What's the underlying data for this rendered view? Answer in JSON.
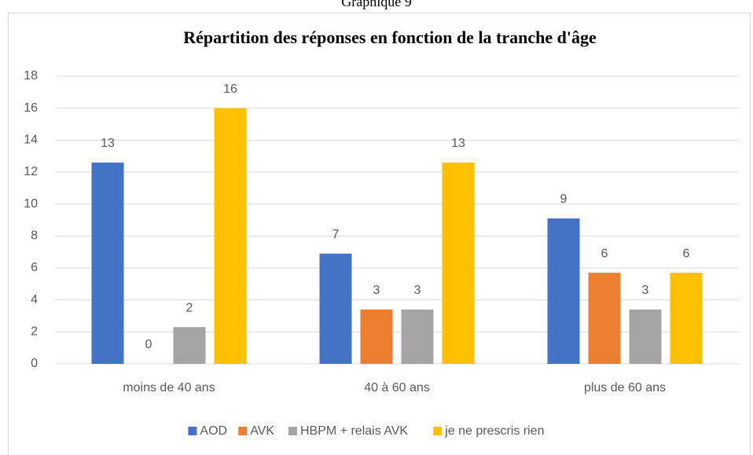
{
  "page_title": "Graphique 9",
  "chart_data": {
    "type": "bar",
    "title": "Répartition des réponses en fonction de la tranche d'âge",
    "categories": [
      "moins de 40 ans",
      "40 à 60 ans",
      "plus de 60 ans"
    ],
    "series": [
      {
        "name": "AOD",
        "color": "#4472c4",
        "values": [
          12.6,
          6.9,
          9.1
        ],
        "value_labels": [
          "13",
          "7",
          "9"
        ]
      },
      {
        "name": "AVK",
        "color": "#ed7d31",
        "values": [
          0,
          3.4,
          5.7
        ],
        "value_labels": [
          "0",
          "3",
          "6"
        ]
      },
      {
        "name": "HBPM + relais AVK",
        "color": "#a5a5a5",
        "values": [
          2.3,
          3.4,
          3.4
        ],
        "value_labels": [
          "2",
          "3",
          "3"
        ]
      },
      {
        "name": "je ne prescris rien",
        "color": "#ffc000",
        "values": [
          16,
          12.6,
          5.7
        ],
        "value_labels": [
          "16",
          "13",
          "6"
        ]
      }
    ],
    "ylim": [
      0,
      18
    ],
    "yticks": [
      0,
      2,
      4,
      6,
      8,
      10,
      12,
      14,
      16,
      18
    ],
    "grid": true,
    "legend": "bottom"
  }
}
